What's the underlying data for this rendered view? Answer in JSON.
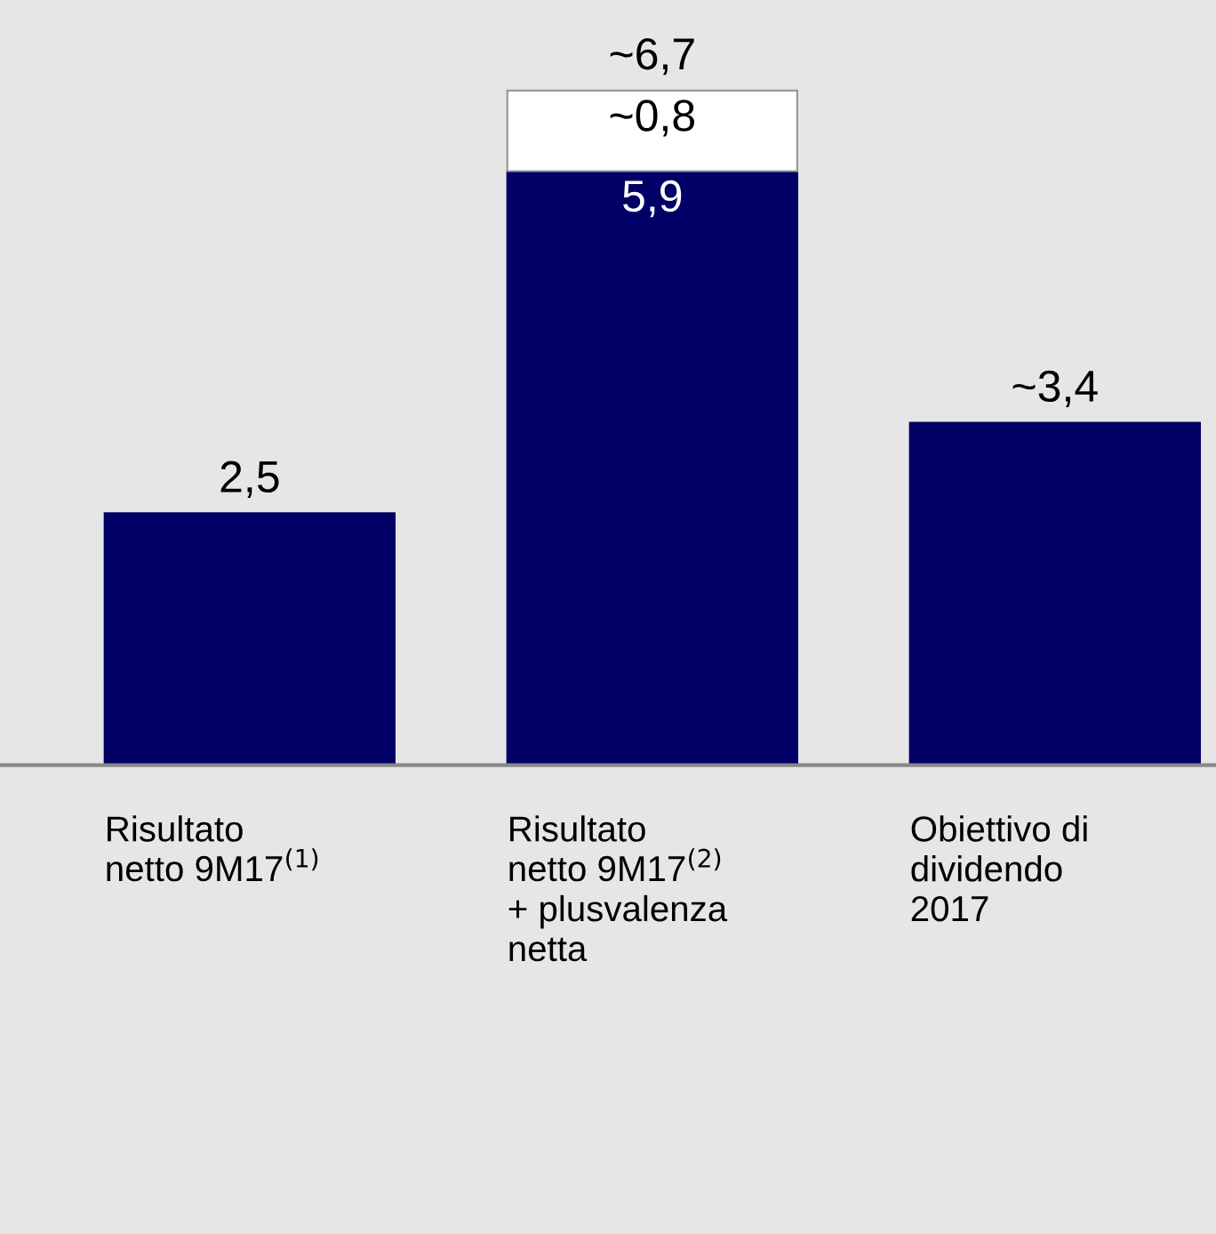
{
  "chart_data": {
    "type": "bar",
    "stacked": true,
    "categories": [
      "Risultato\nnetto 9M17$^{(1)}$",
      "Risultato\nnetto 9M17$^{(2)}$\n+ plusvalenza\nnetta",
      "Obiettivo di\ndividendo\n2017"
    ],
    "series": [
      {
        "color": "#000066",
        "values": [
          2.5,
          5.9,
          3.4
        ],
        "value_labels": [
          "2,5",
          "5,9",
          "~3,4"
        ]
      },
      {
        "color": "#ffffff",
        "values": [
          null,
          0.8,
          null
        ],
        "value_labels": [
          null,
          "~0,8",
          null
        ]
      }
    ],
    "totals": [
      null,
      "~6,7",
      null
    ],
    "ylim": [
      0,
      7.6
    ],
    "tick_labels": "x",
    "legend": false
  }
}
